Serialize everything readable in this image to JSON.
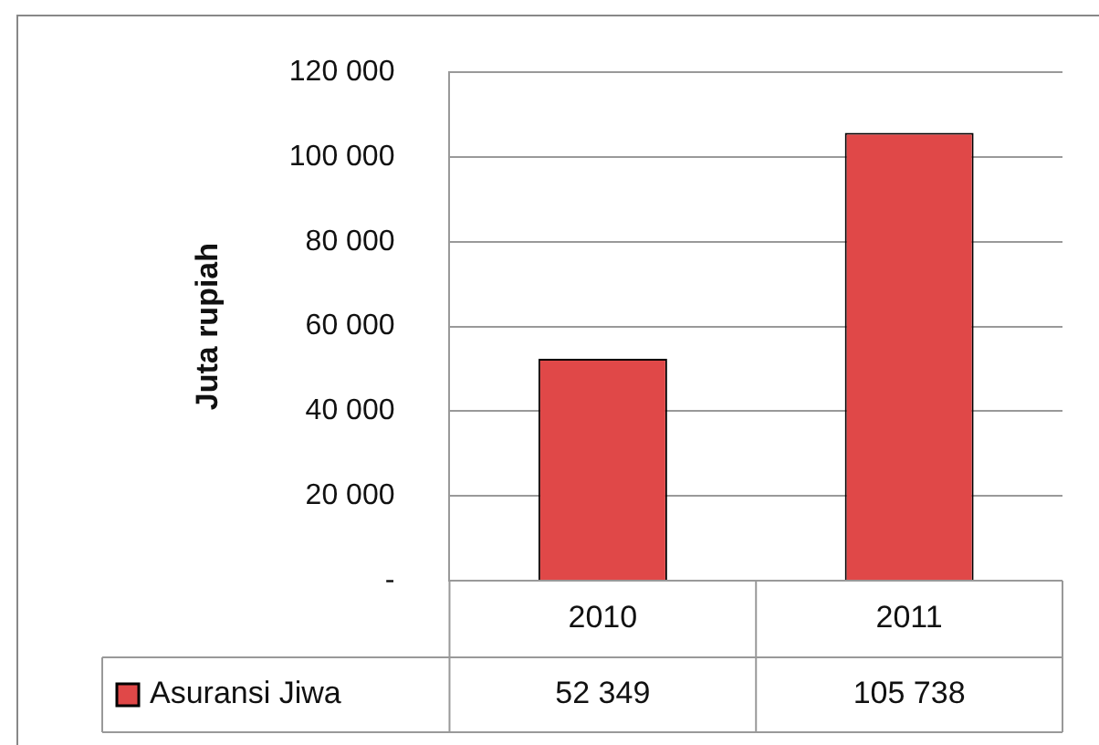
{
  "chart_data": {
    "type": "bar",
    "ylabel": "Juta rupiah",
    "categories": [
      "2010",
      "2011"
    ],
    "series": [
      {
        "name": "Asuransi Jiwa",
        "color": "#e04848",
        "values": [
          52349,
          105738
        ],
        "value_labels": [
          "52 349",
          "105 738"
        ]
      }
    ],
    "ylim": [
      0,
      120000
    ],
    "yticks": [
      {
        "value": 0,
        "label": "-"
      },
      {
        "value": 20000,
        "label": "20 000"
      },
      {
        "value": 40000,
        "label": "40 000"
      },
      {
        "value": 60000,
        "label": "60 000"
      },
      {
        "value": 80000,
        "label": "80 000"
      },
      {
        "value": 100000,
        "label": "100 000"
      },
      {
        "value": 120000,
        "label": "120 000"
      }
    ],
    "grid": "y",
    "legend": "bottom left"
  }
}
